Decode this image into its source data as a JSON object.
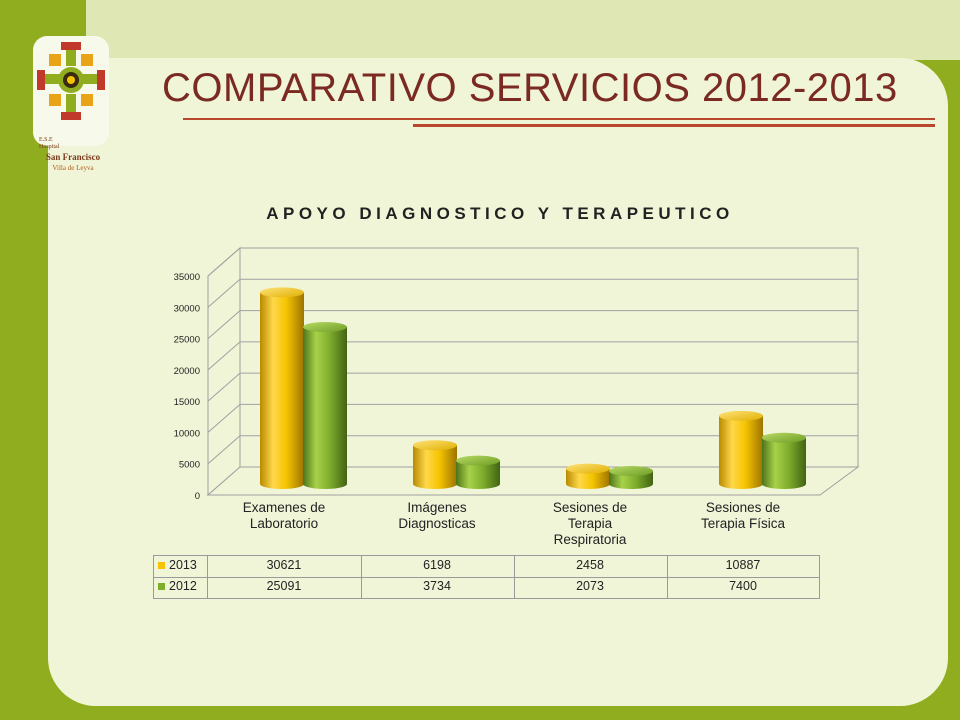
{
  "slide": {
    "title": "COMPARATIVO SERVICIOS 2012-2013"
  },
  "logo": {
    "line1": "E.S.E",
    "line2": "Hospital",
    "line3": "San Francisco",
    "line4": "Villa de Leyva"
  },
  "colors": {
    "background_green": "#8fad1e",
    "panel": "#f1f5d8",
    "title": "#7a2a22",
    "series_2013": "#f5c400",
    "series_2012": "#7fae2d"
  },
  "chart_data": {
    "type": "bar",
    "title": "APOYO DIAGNOSTICO Y TERAPEUTICO",
    "categories": [
      [
        "Examenes de",
        "Laboratorio"
      ],
      [
        "Imágenes",
        "Diagnosticas"
      ],
      [
        "Sesiones de",
        "Terapia",
        "Respiratoria"
      ],
      [
        "Sesiones de",
        "Terapia Física"
      ]
    ],
    "series": [
      {
        "name": "2013",
        "values": [
          30621,
          6198,
          2458,
          10887
        ],
        "color": "#f5c400"
      },
      {
        "name": "2012",
        "values": [
          25091,
          3734,
          2073,
          7400
        ],
        "color": "#7fae2d"
      }
    ],
    "y_ticks": [
      "0",
      "5000",
      "10000",
      "15000",
      "20000",
      "25000",
      "30000",
      "35000"
    ],
    "ylim": [
      0,
      35000
    ],
    "grid": true,
    "style": "3d-cylinder",
    "legend": "data-table-below"
  }
}
